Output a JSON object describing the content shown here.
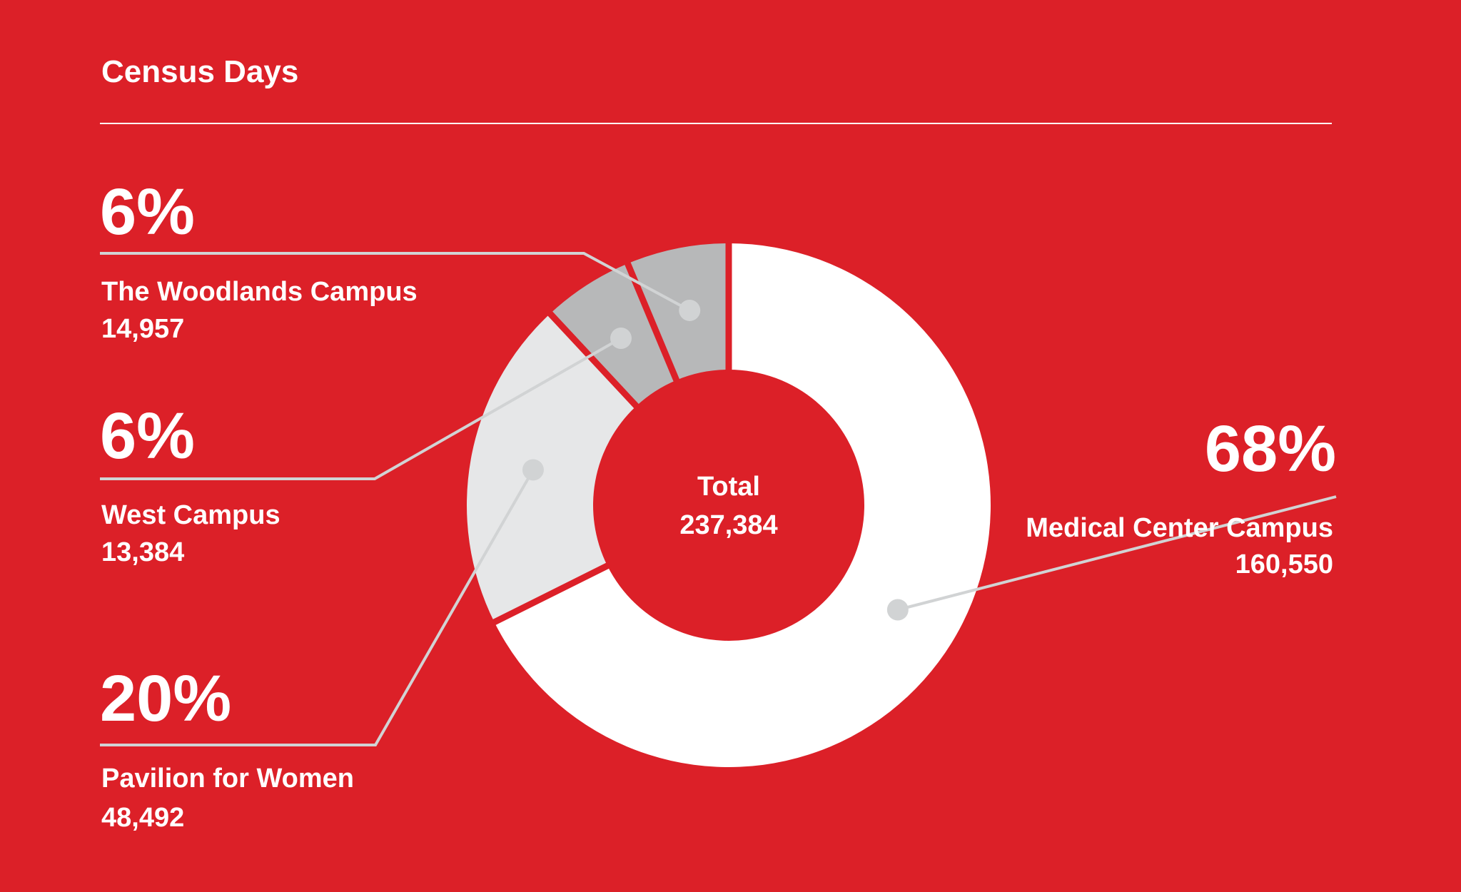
{
  "chart_data": {
    "type": "pie",
    "donut": true,
    "title": "Census Days",
    "center_label": "Total",
    "center_value": "237,384",
    "slices": [
      {
        "label": "Medical Center Campus",
        "value": 160550,
        "value_text": "160,550",
        "percent_text": "68%",
        "color": "#ffffff"
      },
      {
        "label": "Pavilion for Women",
        "value": 48492,
        "value_text": "48,492",
        "percent_text": "20%",
        "color": "#e6e7e8"
      },
      {
        "label": "West Campus",
        "value": 13384,
        "value_text": "13,384",
        "percent_text": "6%",
        "color": "#b7b8b9"
      },
      {
        "label": "The Woodlands Campus",
        "value": 14957,
        "value_text": "14,957",
        "percent_text": "6%",
        "color": "#b7b8b9"
      }
    ]
  },
  "colors": {
    "background": "#dc2028",
    "leader": "#d1d3d4",
    "text": "#ffffff"
  }
}
